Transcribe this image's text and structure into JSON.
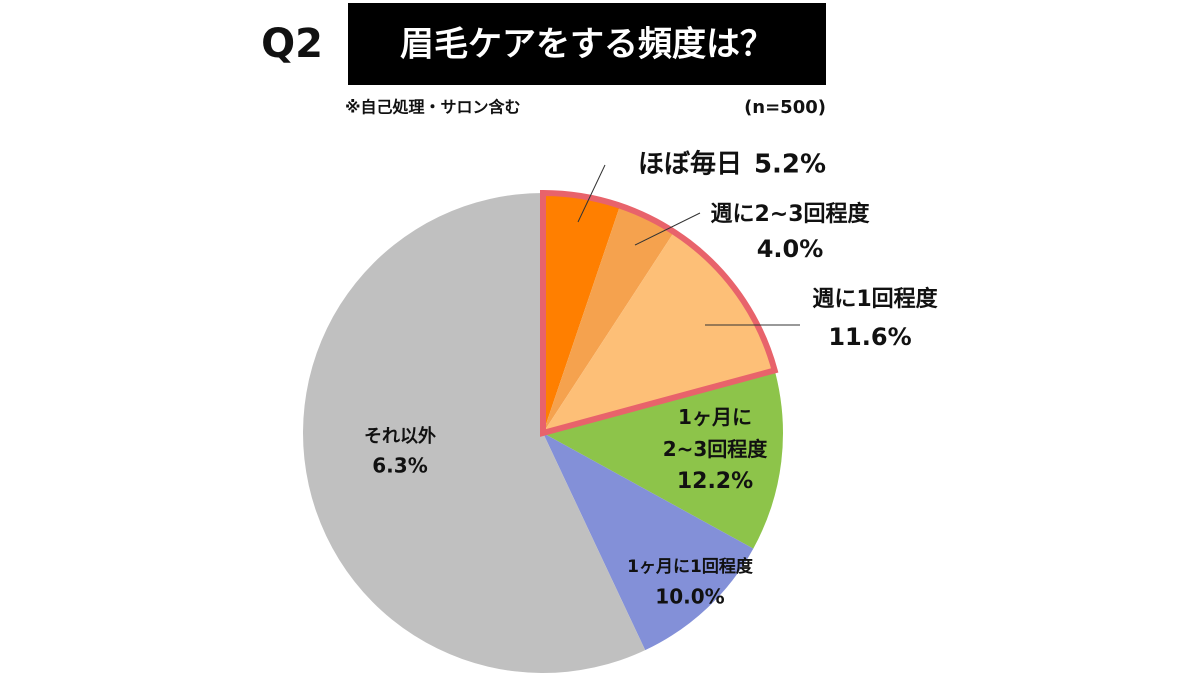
{
  "question": "Q2",
  "chart_data": {
    "type": "pie",
    "title": "眉毛ケアをする頻度は？",
    "subtitle": "※自己処理・サロン含む",
    "sample_size": "(n=500)",
    "categories": [
      "ほぼ毎日",
      "週に2~3回程度",
      "週に1回程度",
      "1ヶ月に\n2~3回程度",
      "1ヶ月に1回程度",
      "それ以外"
    ],
    "values": [
      5.2,
      4.0,
      11.6,
      12.2,
      10.0,
      6.3
    ],
    "value_labels": [
      "5.2%",
      "4.0%",
      "11.6%",
      "12.2%",
      "10.0%",
      "6.3%"
    ],
    "colors": [
      "#ff7f00",
      "#f5a24e",
      "#fdbf77",
      "#8dc44a",
      "#8390d8",
      "#c0c0c0"
    ],
    "highlight_color": "#e8636b"
  }
}
